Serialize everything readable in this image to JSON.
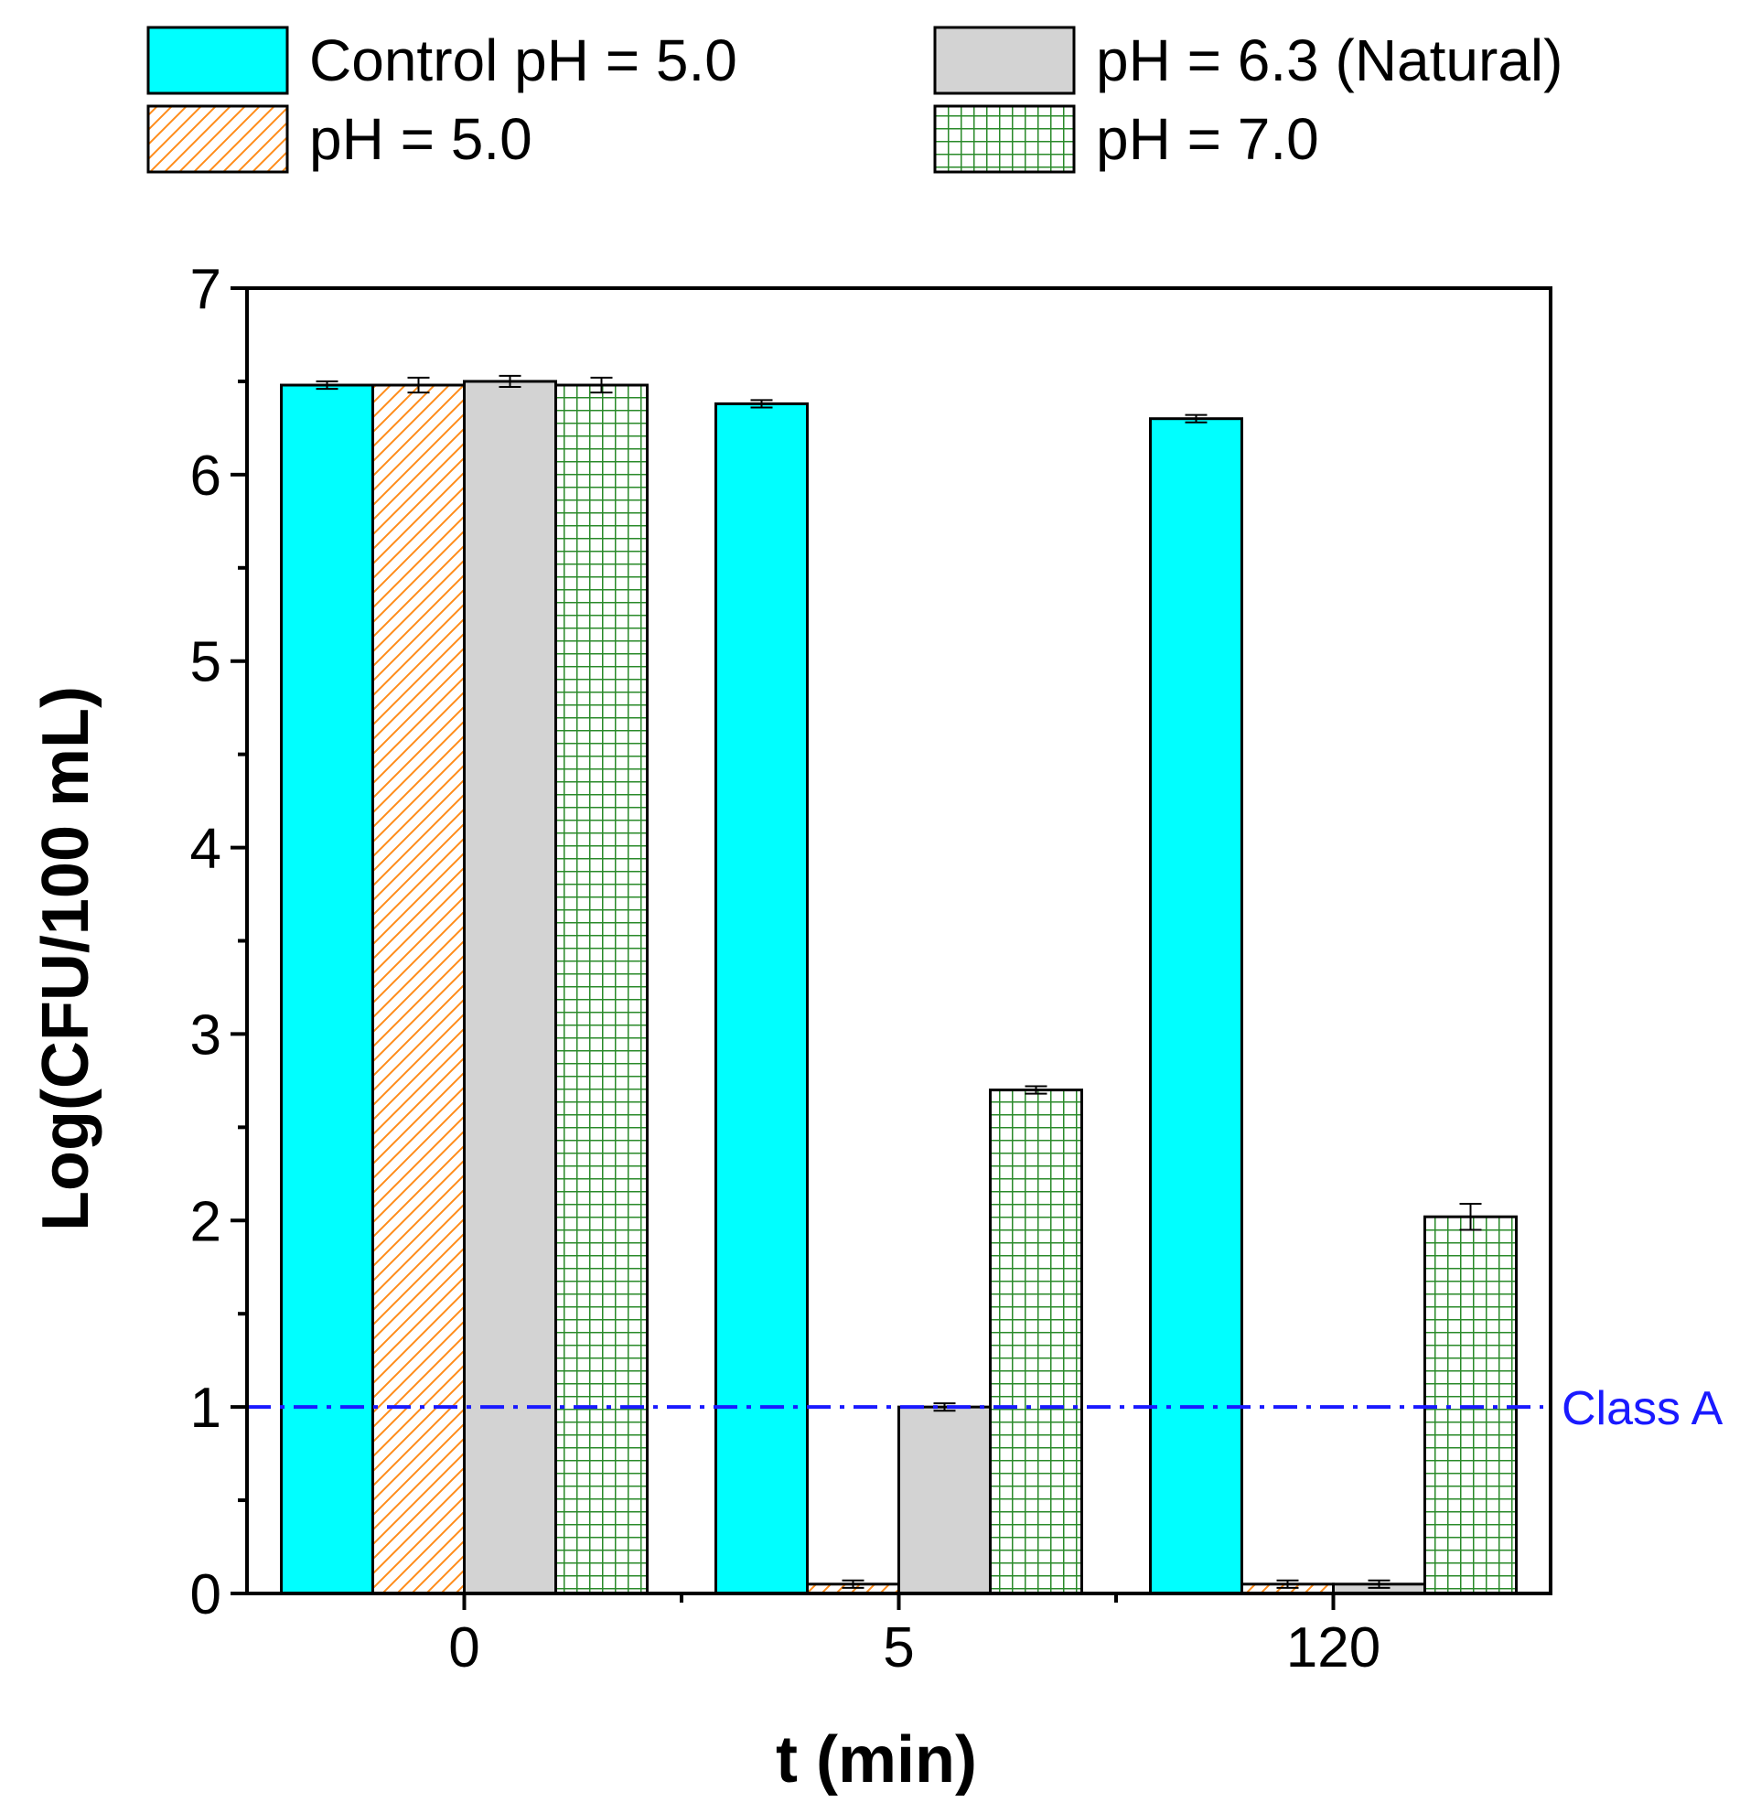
{
  "chart_data": {
    "type": "bar",
    "title": "",
    "xlabel": "t (min)",
    "ylabel": "Log(CFU/100 mL)",
    "ylim": [
      0,
      7
    ],
    "y_ticks": [
      "0",
      "1",
      "2",
      "3",
      "4",
      "5",
      "6",
      "7"
    ],
    "categories": [
      "0",
      "5",
      "120"
    ],
    "series": [
      {
        "name": "Control pH = 5.0",
        "fill": "solid",
        "color": "#00ffff",
        "values": [
          6.48,
          6.38,
          6.3
        ],
        "errors": [
          0.02,
          0.02,
          0.02
        ]
      },
      {
        "name": "pH = 5.0",
        "fill": "hatch",
        "color": "#ff8c1a",
        "values": [
          6.48,
          0.05,
          0.05
        ],
        "errors": [
          0.04,
          0.02,
          0.02
        ]
      },
      {
        "name": "pH = 6.3 (Natural)",
        "fill": "solid",
        "color": "#d3d3d3",
        "values": [
          6.5,
          1.0,
          0.05
        ],
        "errors": [
          0.03,
          0.02,
          0.02
        ]
      },
      {
        "name": "pH = 7.0",
        "fill": "grid",
        "color": "#2a8a2a",
        "values": [
          6.48,
          2.7,
          2.02
        ],
        "errors": [
          0.04,
          0.02,
          0.07
        ]
      }
    ],
    "reference_line": {
      "value": 1,
      "label": "Class A",
      "color": "#1a1aff"
    },
    "legend_position": "top"
  }
}
